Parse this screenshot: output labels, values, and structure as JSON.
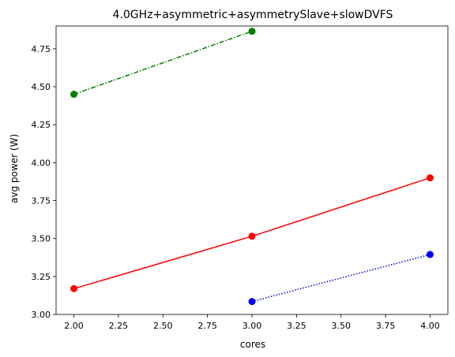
{
  "chart_data": {
    "type": "line",
    "title": "4.0GHz+asymmetric+asymmetrySlave+slowDVFS",
    "xlabel": "cores",
    "ylabel": "avg power (W)",
    "xlim": [
      1.9,
      4.1
    ],
    "ylim": [
      3.0,
      4.9
    ],
    "xticks": [
      "2.00",
      "2.25",
      "2.50",
      "2.75",
      "3.00",
      "3.25",
      "3.50",
      "3.75",
      "4.00"
    ],
    "yticks": [
      "3.00",
      "3.25",
      "3.50",
      "3.75",
      "4.00",
      "4.25",
      "4.50",
      "4.75"
    ],
    "grid": false,
    "series": [
      {
        "color": "#008000",
        "line_style": "dash-dot",
        "marker": "circle",
        "x": [
          2,
          3
        ],
        "y": [
          4.45,
          4.865
        ]
      },
      {
        "color": "#ff0000",
        "line_style": "solid",
        "marker": "circle",
        "x": [
          2,
          3,
          4
        ],
        "y": [
          3.17,
          3.515,
          3.9
        ]
      },
      {
        "color": "#0000ff",
        "line_style": "dotted",
        "marker": "circle",
        "x": [
          3,
          4
        ],
        "y": [
          3.085,
          3.395
        ]
      }
    ]
  }
}
